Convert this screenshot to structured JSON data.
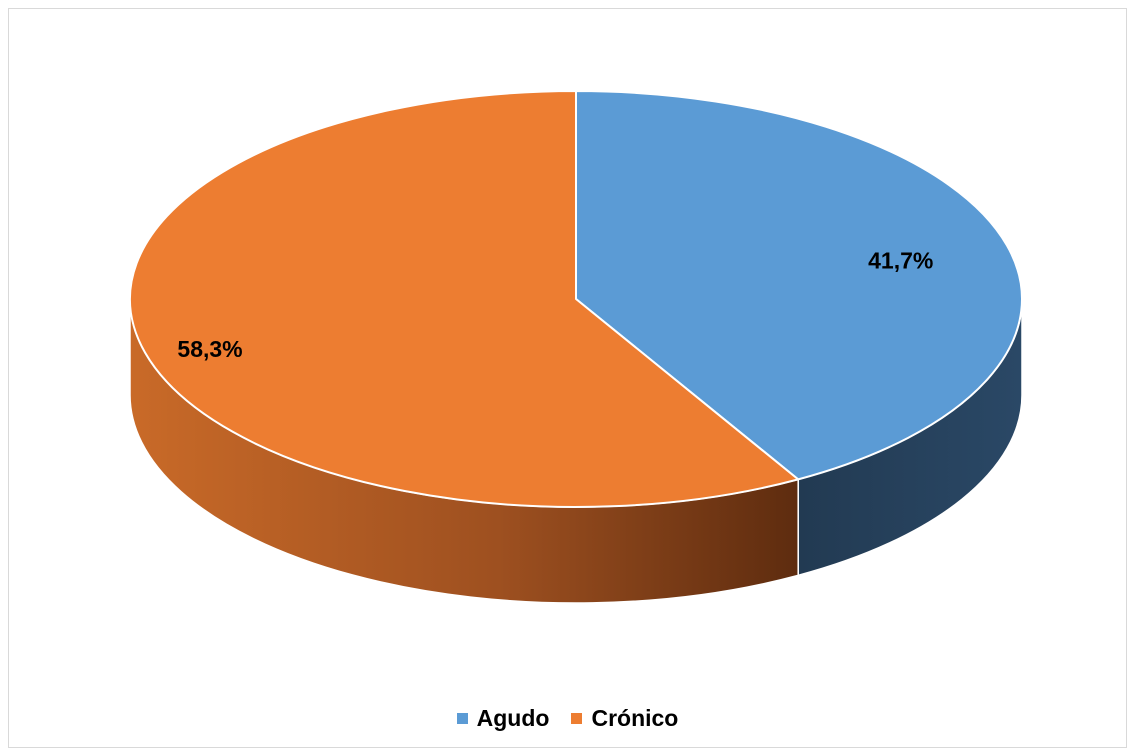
{
  "chart_data": {
    "type": "pie",
    "style": "3d",
    "categories": [
      "Agudo",
      "Crónico"
    ],
    "values": [
      41.7,
      58.3
    ],
    "value_labels": [
      "41,7%",
      "58,3%"
    ],
    "colors": [
      "#5b9bd5",
      "#ed7d31"
    ],
    "side_colors": [
      "#243f5a",
      "#b35f24"
    ],
    "title": "",
    "legend_position": "bottom"
  },
  "legend": {
    "items": [
      {
        "label": "Agudo",
        "color": "#5b9bd5"
      },
      {
        "label": "Crónico",
        "color": "#ed7d31"
      }
    ]
  }
}
